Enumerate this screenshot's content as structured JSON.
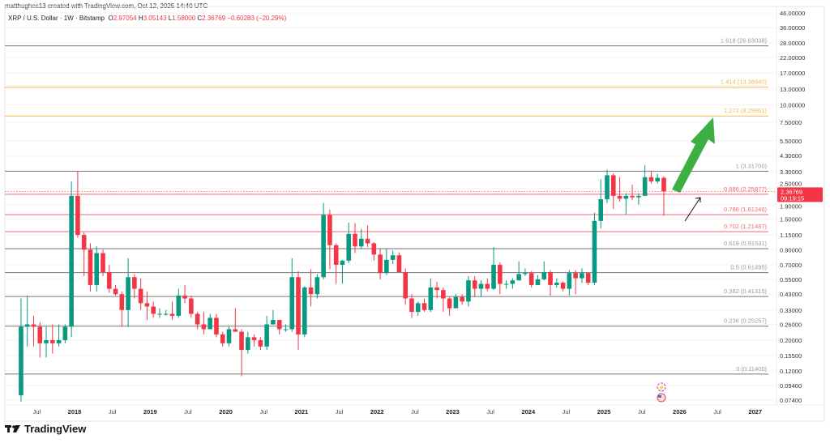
{
  "header": {
    "credit": "matthughes13 created with TradingView.com, Oct 12, 2025 14:40 UTC"
  },
  "symbol": {
    "name": "XRP / U.S. Dollar · 1W · Bitstamp",
    "open_label": "O",
    "open": "2.97054",
    "high_label": "H",
    "high": "3.05143",
    "low_label": "L",
    "low": "1.58000",
    "close_label": "C",
    "close": "2.36769",
    "change": "−0.60283 (−20.29%)"
  },
  "price_label": {
    "price": "2.36769",
    "countdown": "09:19:15"
  },
  "brand": {
    "name": "TradingView"
  },
  "colors": {
    "up": "#089981",
    "down": "#f23645",
    "gray_level": "#787b86",
    "orange_level": "#f7a600",
    "red_level": "#f23645",
    "arrow": "#3cb043"
  },
  "chart_data": {
    "type": "candlestick",
    "scale": "log",
    "ylim": [
      0.07,
      48
    ],
    "xlim": [
      "2017-01",
      "2027-06"
    ],
    "price_ticks": [
      "46.00000",
      "36.00000",
      "28.00000",
      "22.00000",
      "17.00000",
      "13.00000",
      "10.00000",
      "7.50000",
      "5.50000",
      "4.30000",
      "3.30000",
      "2.50000",
      "1.90000",
      "1.50000",
      "1.15000",
      "0.90000",
      "0.70000",
      "0.55000",
      "0.43000",
      "0.33000",
      "0.26000",
      "0.20000",
      "0.15500",
      "0.12000",
      "0.09400",
      "0.07400"
    ],
    "time_ticks": [
      {
        "label": "Jul",
        "date": "2017-07"
      },
      {
        "label": "2018",
        "date": "2018-01"
      },
      {
        "label": "Jul",
        "date": "2018-07"
      },
      {
        "label": "2019",
        "date": "2019-01"
      },
      {
        "label": "Jul",
        "date": "2019-07"
      },
      {
        "label": "2020",
        "date": "2020-01"
      },
      {
        "label": "Jul",
        "date": "2020-07"
      },
      {
        "label": "2021",
        "date": "2021-01"
      },
      {
        "label": "Jul",
        "date": "2021-07"
      },
      {
        "label": "2022",
        "date": "2022-01"
      },
      {
        "label": "Jul",
        "date": "2022-07"
      },
      {
        "label": "2023",
        "date": "2023-01"
      },
      {
        "label": "Jul",
        "date": "2023-07"
      },
      {
        "label": "2024",
        "date": "2024-01"
      },
      {
        "label": "Jul",
        "date": "2024-07"
      },
      {
        "label": "2025",
        "date": "2025-01"
      },
      {
        "label": "Jul",
        "date": "2025-07"
      },
      {
        "label": "2026",
        "date": "2026-01"
      },
      {
        "label": "Jul",
        "date": "2026-07"
      },
      {
        "label": "2027",
        "date": "2027-01"
      }
    ],
    "fib_levels": [
      {
        "label": "1.618 (26.63038)",
        "value": 26.63038,
        "color": "gray"
      },
      {
        "label": "1.414 (13.38940)",
        "value": 13.3894,
        "color": "orange"
      },
      {
        "label": "1.272 (8.29861)",
        "value": 8.29861,
        "color": "orange"
      },
      {
        "label": "1 (3.31700)",
        "value": 3.317,
        "color": "gray"
      },
      {
        "label": "0.886 (2.25877)",
        "value": 2.25877,
        "color": "red"
      },
      {
        "label": "0.786 (1.61246)",
        "value": 1.61246,
        "color": "red"
      },
      {
        "label": "0.702 (1.21487)",
        "value": 1.21487,
        "color": "red"
      },
      {
        "label": "0.618 (0.91531)",
        "value": 0.91531,
        "color": "gray"
      },
      {
        "label": "0.5 (0.61495)",
        "value": 0.61495,
        "color": "gray"
      },
      {
        "label": "0.382 (0.41315)",
        "value": 0.41315,
        "color": "gray"
      },
      {
        "label": "0.236 (0.25257)",
        "value": 0.25257,
        "color": "gray"
      },
      {
        "label": "0 (0.11400)",
        "value": 0.114,
        "color": "gray"
      }
    ],
    "current_price": 2.36769,
    "candles_ohlc": [
      [
        "2017-04",
        0.08,
        0.4,
        0.072,
        0.25
      ],
      [
        "2017-05",
        0.25,
        0.42,
        0.18,
        0.26
      ],
      [
        "2017-06",
        0.26,
        0.3,
        0.18,
        0.25
      ],
      [
        "2017-07",
        0.25,
        0.27,
        0.15,
        0.19
      ],
      [
        "2017-08",
        0.19,
        0.25,
        0.15,
        0.2
      ],
      [
        "2017-09",
        0.2,
        0.26,
        0.16,
        0.19
      ],
      [
        "2017-10",
        0.19,
        0.26,
        0.18,
        0.2
      ],
      [
        "2017-11",
        0.2,
        0.26,
        0.19,
        0.25
      ],
      [
        "2017-12",
        0.25,
        2.8,
        0.21,
        2.2
      ],
      [
        "2018-01",
        2.2,
        3.3,
        1.1,
        1.15
      ],
      [
        "2018-02",
        1.15,
        1.2,
        0.58,
        0.9
      ],
      [
        "2018-03",
        0.9,
        1.0,
        0.45,
        0.5
      ],
      [
        "2018-04",
        0.5,
        0.95,
        0.45,
        0.85
      ],
      [
        "2018-05",
        0.85,
        0.9,
        0.58,
        0.62
      ],
      [
        "2018-06",
        0.62,
        0.7,
        0.44,
        0.47
      ],
      [
        "2018-07",
        0.47,
        0.5,
        0.42,
        0.43
      ],
      [
        "2018-08",
        0.43,
        0.45,
        0.25,
        0.33
      ],
      [
        "2018-09",
        0.33,
        0.78,
        0.25,
        0.57
      ],
      [
        "2018-10",
        0.57,
        0.6,
        0.4,
        0.47
      ],
      [
        "2018-11",
        0.47,
        0.56,
        0.33,
        0.37
      ],
      [
        "2018-12",
        0.37,
        0.45,
        0.28,
        0.35
      ],
      [
        "2019-01",
        0.35,
        0.38,
        0.29,
        0.31
      ],
      [
        "2019-02",
        0.31,
        0.34,
        0.29,
        0.31
      ],
      [
        "2019-03",
        0.31,
        0.33,
        0.3,
        0.31
      ],
      [
        "2019-04",
        0.31,
        0.38,
        0.28,
        0.3
      ],
      [
        "2019-05",
        0.3,
        0.47,
        0.29,
        0.42
      ],
      [
        "2019-06",
        0.42,
        0.5,
        0.37,
        0.4
      ],
      [
        "2019-07",
        0.4,
        0.42,
        0.29,
        0.31
      ],
      [
        "2019-08",
        0.31,
        0.32,
        0.24,
        0.26
      ],
      [
        "2019-09",
        0.26,
        0.32,
        0.22,
        0.24
      ],
      [
        "2019-10",
        0.24,
        0.31,
        0.24,
        0.29
      ],
      [
        "2019-11",
        0.29,
        0.31,
        0.21,
        0.22
      ],
      [
        "2019-12",
        0.22,
        0.23,
        0.18,
        0.19
      ],
      [
        "2020-01",
        0.19,
        0.25,
        0.18,
        0.24
      ],
      [
        "2020-02",
        0.24,
        0.34,
        0.23,
        0.23
      ],
      [
        "2020-03",
        0.23,
        0.24,
        0.11,
        0.17
      ],
      [
        "2020-04",
        0.17,
        0.23,
        0.16,
        0.21
      ],
      [
        "2020-05",
        0.21,
        0.22,
        0.18,
        0.2
      ],
      [
        "2020-06",
        0.2,
        0.21,
        0.17,
        0.18
      ],
      [
        "2020-07",
        0.18,
        0.3,
        0.17,
        0.26
      ],
      [
        "2020-08",
        0.26,
        0.33,
        0.26,
        0.28
      ],
      [
        "2020-09",
        0.28,
        0.28,
        0.22,
        0.24
      ],
      [
        "2020-10",
        0.24,
        0.26,
        0.23,
        0.24
      ],
      [
        "2020-11",
        0.24,
        0.78,
        0.23,
        0.57
      ],
      [
        "2020-12",
        0.57,
        0.63,
        0.17,
        0.22
      ],
      [
        "2021-01",
        0.22,
        0.49,
        0.21,
        0.48
      ],
      [
        "2021-02",
        0.48,
        0.65,
        0.35,
        0.43
      ],
      [
        "2021-03",
        0.43,
        0.6,
        0.4,
        0.57
      ],
      [
        "2021-04",
        0.57,
        1.96,
        0.55,
        1.6
      ],
      [
        "2021-05",
        1.6,
        1.75,
        0.65,
        0.97
      ],
      [
        "2021-06",
        0.97,
        1.0,
        0.51,
        0.7
      ],
      [
        "2021-07",
        0.7,
        0.76,
        0.51,
        0.75
      ],
      [
        "2021-08",
        0.75,
        1.41,
        0.72,
        1.17
      ],
      [
        "2021-09",
        1.17,
        1.4,
        0.85,
        0.95
      ],
      [
        "2021-10",
        0.95,
        1.27,
        0.91,
        1.08
      ],
      [
        "2021-11",
        1.08,
        1.35,
        0.94,
        1.0
      ],
      [
        "2021-12",
        1.0,
        1.02,
        0.75,
        0.83
      ],
      [
        "2022-01",
        0.83,
        0.91,
        0.55,
        0.61
      ],
      [
        "2022-02",
        0.61,
        0.91,
        0.59,
        0.76
      ],
      [
        "2022-03",
        0.76,
        0.89,
        0.71,
        0.82
      ],
      [
        "2022-04",
        0.82,
        0.86,
        0.62,
        0.62
      ],
      [
        "2022-05",
        0.62,
        0.66,
        0.36,
        0.4
      ],
      [
        "2022-06",
        0.4,
        0.43,
        0.29,
        0.32
      ],
      [
        "2022-07",
        0.32,
        0.38,
        0.3,
        0.37
      ],
      [
        "2022-08",
        0.37,
        0.4,
        0.32,
        0.33
      ],
      [
        "2022-09",
        0.33,
        0.56,
        0.32,
        0.48
      ],
      [
        "2022-10",
        0.48,
        0.53,
        0.4,
        0.46
      ],
      [
        "2022-11",
        0.46,
        0.48,
        0.32,
        0.4
      ],
      [
        "2022-12",
        0.4,
        0.41,
        0.3,
        0.34
      ],
      [
        "2023-01",
        0.34,
        0.43,
        0.34,
        0.41
      ],
      [
        "2023-02",
        0.41,
        0.43,
        0.36,
        0.38
      ],
      [
        "2023-03",
        0.38,
        0.58,
        0.35,
        0.54
      ],
      [
        "2023-04",
        0.54,
        0.58,
        0.41,
        0.47
      ],
      [
        "2023-05",
        0.47,
        0.54,
        0.41,
        0.51
      ],
      [
        "2023-06",
        0.51,
        0.56,
        0.45,
        0.47
      ],
      [
        "2023-07",
        0.47,
        0.94,
        0.46,
        0.7
      ],
      [
        "2023-08",
        0.7,
        0.73,
        0.43,
        0.51
      ],
      [
        "2023-09",
        0.51,
        0.54,
        0.47,
        0.51
      ],
      [
        "2023-10",
        0.51,
        0.56,
        0.47,
        0.54
      ],
      [
        "2023-11",
        0.54,
        0.74,
        0.54,
        0.6
      ],
      [
        "2023-12",
        0.6,
        0.66,
        0.58,
        0.61
      ],
      [
        "2024-01",
        0.61,
        0.63,
        0.48,
        0.5
      ],
      [
        "2024-02",
        0.5,
        0.59,
        0.5,
        0.55
      ],
      [
        "2024-03",
        0.55,
        0.74,
        0.54,
        0.62
      ],
      [
        "2024-04",
        0.62,
        0.64,
        0.42,
        0.5
      ],
      [
        "2024-05",
        0.5,
        0.56,
        0.48,
        0.52
      ],
      [
        "2024-06",
        0.52,
        0.53,
        0.45,
        0.47
      ],
      [
        "2024-07",
        0.47,
        0.64,
        0.42,
        0.61
      ],
      [
        "2024-08",
        0.61,
        0.64,
        0.43,
        0.56
      ],
      [
        "2024-09",
        0.56,
        0.66,
        0.52,
        0.61
      ],
      [
        "2024-10",
        0.61,
        0.61,
        0.5,
        0.52
      ],
      [
        "2024-11",
        0.52,
        1.66,
        0.5,
        1.45
      ],
      [
        "2024-12",
        1.45,
        2.9,
        1.28,
        2.08
      ],
      [
        "2025-01",
        2.08,
        3.4,
        1.95,
        3.1
      ],
      [
        "2025-02",
        3.1,
        3.2,
        1.77,
        2.2
      ],
      [
        "2025-03",
        2.2,
        3.0,
        2.0,
        2.1
      ],
      [
        "2025-04",
        2.1,
        2.3,
        1.61,
        2.2
      ],
      [
        "2025-05",
        2.2,
        2.65,
        2.05,
        2.15
      ],
      [
        "2025-06",
        2.15,
        2.3,
        1.9,
        2.2
      ],
      [
        "2025-07",
        2.2,
        3.66,
        2.2,
        3.0
      ],
      [
        "2025-08",
        3.0,
        3.35,
        2.7,
        2.8
      ],
      [
        "2025-09",
        2.8,
        3.18,
        2.7,
        2.97
      ],
      [
        "2025-10",
        2.97054,
        3.05143,
        1.58,
        2.36769
      ]
    ]
  }
}
